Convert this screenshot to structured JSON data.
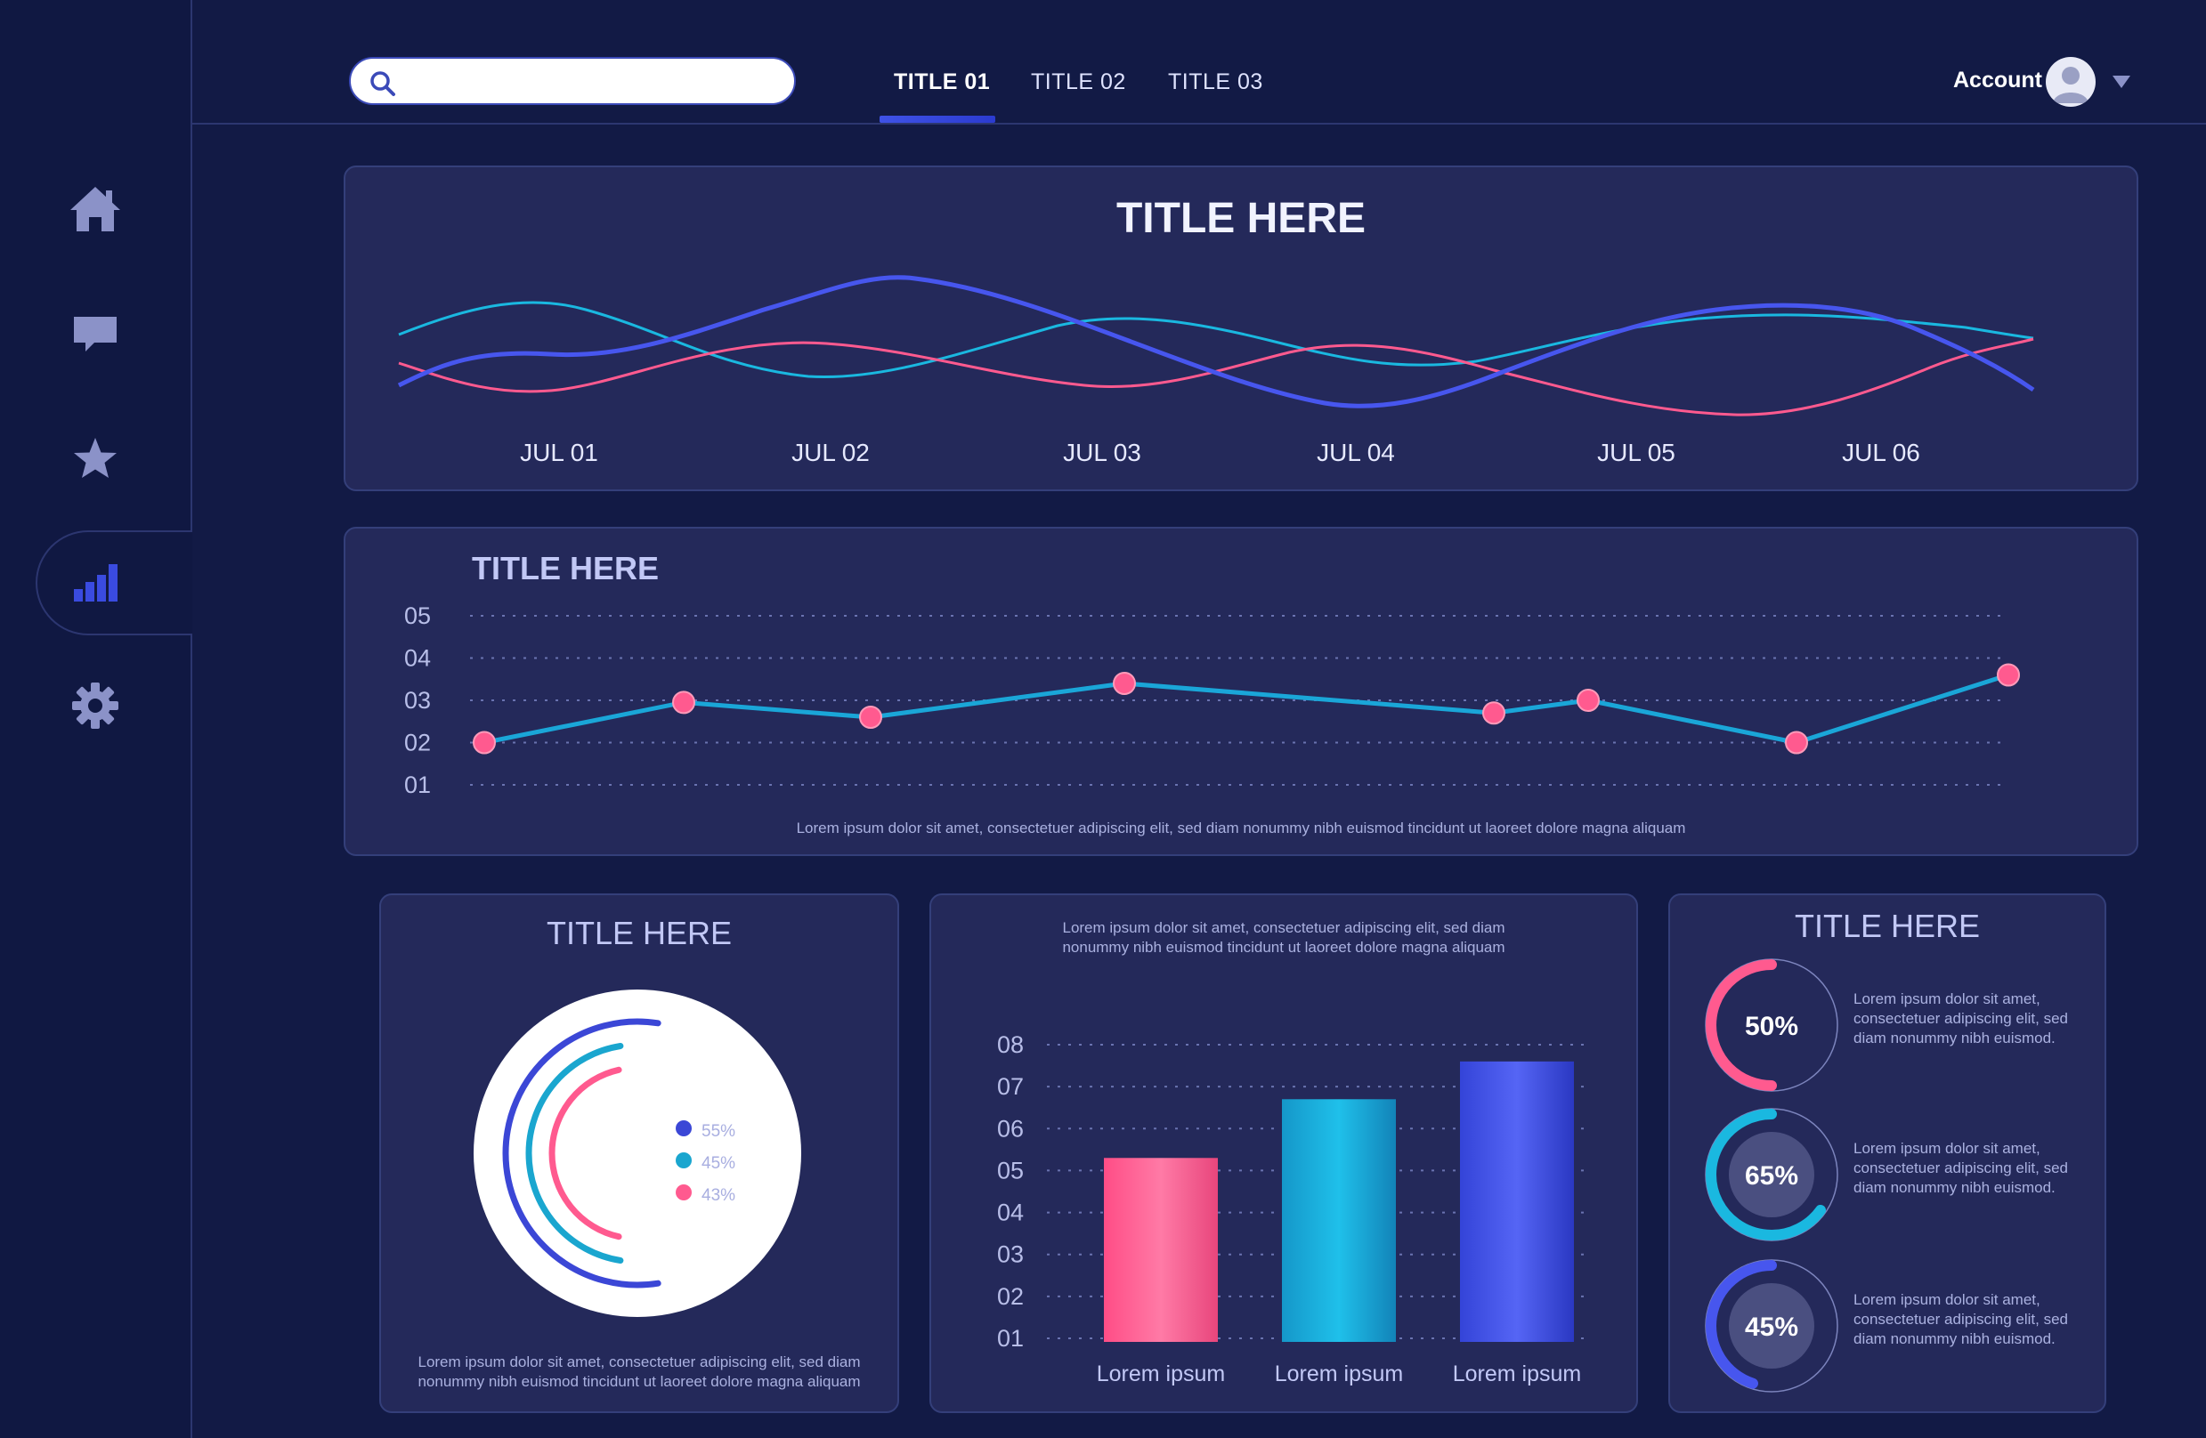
{
  "search": {
    "placeholder": ""
  },
  "tabs": [
    {
      "label": "TITLE 01"
    },
    {
      "label": "TITLE 02"
    },
    {
      "label": "TITLE 03"
    }
  ],
  "account": {
    "label": "Account"
  },
  "sidebar": {
    "items": [
      {
        "icon": "home-icon"
      },
      {
        "icon": "chat-icon"
      },
      {
        "icon": "star-icon"
      },
      {
        "icon": "bar-chart-icon"
      },
      {
        "icon": "gear-icon"
      }
    ]
  },
  "colors": {
    "pink": "#ff5a8f",
    "cyan": "#1ab8e0",
    "blue": "#4756ee",
    "background": "#121a45",
    "card": "#24295a"
  },
  "wave_card": {
    "title": "TITLE HERE",
    "chart_data": {
      "type": "line",
      "categories": [
        "JUL 01",
        "JUL 02",
        "JUL 03",
        "JUL 04",
        "JUL 05",
        "JUL 06"
      ],
      "grid": false,
      "legend": "none"
    }
  },
  "line_card": {
    "title": "TITLE HERE",
    "caption": "Lorem ipsum dolor sit amet, consectetuer adipiscing elit, sed diam nonummy nibh euismod tincidunt ut laoreet dolore magna aliquam",
    "chart_data": {
      "type": "line",
      "yticks": [
        "05",
        "04",
        "03",
        "02",
        "01"
      ],
      "ylim": [
        1,
        5
      ],
      "values": [
        2.0,
        2.95,
        2.6,
        3.4,
        2.7,
        3.0,
        2.0,
        3.6
      ],
      "grid": true
    }
  },
  "pie_card": {
    "title": "TITLE HERE",
    "caption_line1": "Lorem ipsum dolor sit amet, consectetuer adipiscing elit, sed diam",
    "caption_line2": "nonummy nibh euismod tincidunt ut laoreet dolore magna aliquam",
    "chart_data": {
      "type": "radial-bar",
      "series": [
        {
          "label": "55%",
          "value": 55,
          "color": "#3b47d6"
        },
        {
          "label": "45%",
          "value": 45,
          "color": "#1aa6cf"
        },
        {
          "label": "43%",
          "value": 43,
          "color": "#ff5a8f"
        }
      ]
    }
  },
  "bar_card": {
    "caption_line1": "Lorem ipsum dolor sit amet, consectetuer adipiscing elit, sed diam",
    "caption_line2": "nonummy nibh euismod tincidunt ut laoreet dolore magna aliquam",
    "chart_data": {
      "type": "bar",
      "categories": [
        "Lorem ipsum",
        "Lorem ipsum",
        "Lorem ipsum"
      ],
      "values": [
        5.3,
        6.7,
        7.6
      ],
      "yticks": [
        "08",
        "07",
        "06",
        "05",
        "04",
        "03",
        "02",
        "01"
      ],
      "ylim": [
        1,
        8
      ],
      "colors": [
        "#ff5a8f",
        "#1ab8e0",
        "#4756ee"
      ]
    }
  },
  "progress_card": {
    "title": "TITLE HERE",
    "items": [
      {
        "value": 50,
        "label": "50%",
        "color": "#ff5a8f",
        "line1": "Lorem ipsum dolor sit amet,",
        "line2": "consectetuer adipiscing elit, sed",
        "line3": "diam nonummy nibh euismod."
      },
      {
        "value": 65,
        "label": "65%",
        "color": "#1ab8e0",
        "line1": "Lorem ipsum dolor sit amet,",
        "line2": "consectetuer adipiscing elit, sed",
        "line3": "diam nonummy nibh euismod."
      },
      {
        "value": 45,
        "label": "45%",
        "color": "#4756ee",
        "line1": "Lorem ipsum dolor sit amet,",
        "line2": "consectetuer adipiscing elit, sed",
        "line3": "diam nonummy nibh euismod."
      }
    ]
  }
}
